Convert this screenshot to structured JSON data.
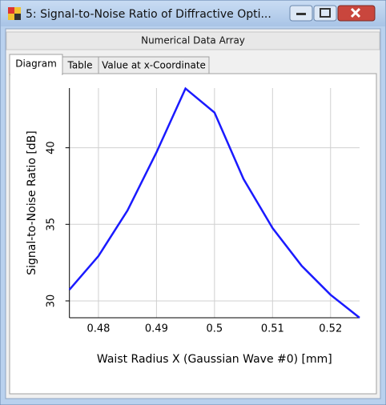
{
  "window": {
    "title": "5: Signal-to-Noise Ratio of Diffractive Opti...",
    "header": "Numerical Data Array",
    "tabs": [
      "Diagram",
      "Table",
      "Value at x-Coordinate"
    ]
  },
  "chart_data": {
    "type": "line",
    "x_label": "Waist Radius X (Gaussian Wave #0) [mm]",
    "y_label": "Signal-to-Noise Ratio [dB]",
    "x": [
      0.475,
      0.48,
      0.485,
      0.49,
      0.495,
      0.5,
      0.505,
      0.51,
      0.515,
      0.52,
      0.525
    ],
    "values": [
      30.73,
      32.93,
      35.9,
      39.7,
      43.87,
      42.3,
      37.96,
      34.76,
      32.3,
      30.4,
      28.9
    ],
    "color": "#1a1aff",
    "xlim": [
      0.475,
      0.525
    ],
    "xticks": [
      0.48,
      0.49,
      0.5,
      0.51,
      0.52
    ],
    "ylim": [
      28.9,
      43.9
    ],
    "yticks": [
      30,
      35,
      40
    ],
    "grid": true
  }
}
